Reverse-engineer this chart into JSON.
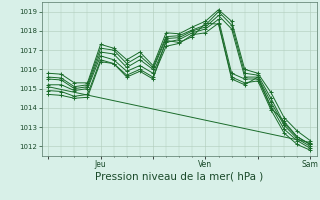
{
  "bg_color": "#d8f0e8",
  "grid_color": "#b0ccbb",
  "line_color": "#1a6b2a",
  "marker_color": "#1a6b2a",
  "xlabel": "Pression niveau de la mer( hPa )",
  "xlabel_fontsize": 7.5,
  "ylim": [
    1011.5,
    1019.5
  ],
  "yticks": [
    1012,
    1013,
    1014,
    1015,
    1016,
    1017,
    1018,
    1019
  ],
  "xlim": [
    -3,
    123
  ],
  "xtick_labels": [
    "",
    "Jeu",
    "",
    "Ven",
    "",
    "Sam"
  ],
  "xtick_positions": [
    0,
    24,
    48,
    72,
    96,
    120
  ],
  "series": [
    [
      0,
      1015.6,
      6,
      1015.55,
      12,
      1015.1,
      18,
      1015.2,
      24,
      1017.1,
      30,
      1017.0,
      36,
      1016.3,
      42,
      1016.7,
      48,
      1016.1,
      54,
      1017.7,
      60,
      1017.75,
      66,
      1018.05,
      72,
      1018.3,
      78,
      1019.0,
      84,
      1018.3,
      90,
      1015.8,
      96,
      1015.7,
      102,
      1014.5,
      108,
      1013.2,
      114,
      1012.5,
      120,
      1012.1
    ],
    [
      0,
      1015.8,
      6,
      1015.75,
      12,
      1015.3,
      18,
      1015.3,
      24,
      1017.3,
      30,
      1017.1,
      36,
      1016.5,
      42,
      1016.9,
      48,
      1016.2,
      54,
      1017.9,
      60,
      1017.85,
      66,
      1018.2,
      72,
      1018.5,
      78,
      1019.1,
      84,
      1018.5,
      90,
      1016.0,
      96,
      1015.8,
      102,
      1014.8,
      108,
      1013.5,
      114,
      1012.8,
      120,
      1012.3
    ],
    [
      0,
      1015.5,
      6,
      1015.45,
      12,
      1015.0,
      18,
      1015.1,
      24,
      1016.9,
      30,
      1016.8,
      36,
      1016.1,
      42,
      1016.5,
      48,
      1016.0,
      54,
      1017.6,
      60,
      1017.65,
      66,
      1018.0,
      72,
      1018.2,
      78,
      1018.8,
      84,
      1018.1,
      90,
      1015.6,
      96,
      1015.6,
      102,
      1014.3,
      108,
      1013.1,
      114,
      1012.4,
      120,
      1012.0
    ],
    [
      0,
      1015.2,
      6,
      1015.2,
      12,
      1014.9,
      18,
      1015.0,
      24,
      1016.7,
      30,
      1016.5,
      36,
      1015.9,
      42,
      1016.2,
      48,
      1015.8,
      54,
      1017.4,
      60,
      1017.55,
      66,
      1017.9,
      72,
      1018.1,
      78,
      1018.6,
      84,
      1015.8,
      90,
      1015.5,
      96,
      1015.5,
      102,
      1014.1,
      108,
      1012.9,
      114,
      1012.3,
      120,
      1011.9
    ],
    [
      0,
      1014.9,
      6,
      1014.85,
      12,
      1014.6,
      18,
      1014.7,
      24,
      1016.5,
      30,
      1016.3,
      36,
      1015.7,
      42,
      1016.0,
      48,
      1015.6,
      54,
      1017.2,
      60,
      1017.35,
      66,
      1017.8,
      72,
      1017.9,
      78,
      1018.4,
      84,
      1015.6,
      90,
      1015.3,
      96,
      1015.4,
      102,
      1013.9,
      108,
      1012.7,
      114,
      1012.1,
      120,
      1011.8
    ],
    [
      0,
      1014.7,
      6,
      1014.65,
      12,
      1014.5,
      18,
      1014.55,
      24,
      1016.4,
      30,
      1016.3,
      36,
      1015.6,
      42,
      1015.9,
      48,
      1015.5,
      54,
      1017.5,
      60,
      1017.4,
      66,
      1017.7,
      72,
      1018.4,
      78,
      1018.35,
      84,
      1015.5,
      90,
      1015.2,
      96,
      1015.6,
      102,
      1014.0,
      108,
      1013.3,
      114,
      1012.5,
      120,
      1012.1
    ],
    [
      0,
      1015.1,
      120,
      1012.2
    ]
  ]
}
